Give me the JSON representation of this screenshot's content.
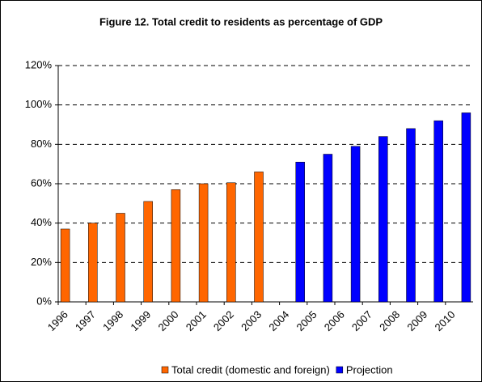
{
  "chart_data": {
    "type": "bar",
    "title": "Figure 12. Total credit to residents as percentage of GDP",
    "categories": [
      "1996",
      "1997",
      "1998",
      "1999",
      "2000",
      "2001",
      "2002",
      "2003",
      "2004",
      "2005",
      "2006",
      "2007",
      "2008",
      "2009",
      "2010"
    ],
    "series": [
      {
        "name": "Total credit (domestic and foreign)",
        "color": "#ff6600",
        "values": [
          37,
          40,
          45,
          51,
          57,
          60,
          60.5,
          66,
          null,
          null,
          null,
          null,
          null,
          null,
          null
        ]
      },
      {
        "name": "Projection",
        "color": "#0000ff",
        "values": [
          null,
          null,
          null,
          null,
          null,
          null,
          null,
          null,
          71,
          75,
          79,
          84,
          88,
          92,
          96
        ]
      }
    ],
    "ylim": [
      0,
      120
    ],
    "yticks": [
      {
        "value": 0,
        "label": "0%"
      },
      {
        "value": 20,
        "label": "20%"
      },
      {
        "value": 40,
        "label": "40%"
      },
      {
        "value": 60,
        "label": "60%"
      },
      {
        "value": 80,
        "label": "80%"
      },
      {
        "value": 100,
        "label": "100%"
      },
      {
        "value": 120,
        "label": "120%"
      }
    ],
    "grid": true
  }
}
